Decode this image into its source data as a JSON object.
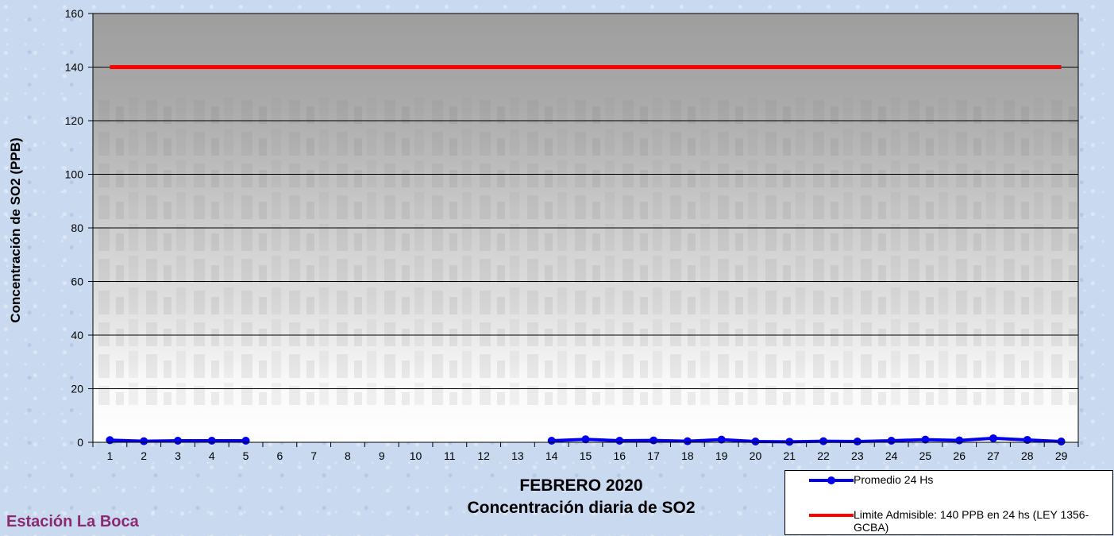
{
  "chart_data": {
    "type": "line",
    "title": "FEBRERO 2020",
    "subtitle": "Concentración diaria de SO2",
    "xlabel": "",
    "ylabel": "Concentración de SO2 (PPB)",
    "ylim": [
      0,
      160
    ],
    "yticks": [
      "0",
      "20",
      "40",
      "60",
      "80",
      "100",
      "120",
      "140",
      "160"
    ],
    "categories": [
      "1",
      "2",
      "3",
      "4",
      "5",
      "6",
      "7",
      "8",
      "9",
      "10",
      "11",
      "12",
      "13",
      "14",
      "15",
      "16",
      "17",
      "18",
      "19",
      "20",
      "21",
      "22",
      "23",
      "24",
      "25",
      "26",
      "27",
      "28",
      "29"
    ],
    "series": [
      {
        "name": "Promedio 24 Hs",
        "color": "#0000ee",
        "values": [
          0.8,
          0.4,
          0.6,
          0.6,
          0.6,
          null,
          null,
          null,
          null,
          null,
          null,
          null,
          null,
          0.6,
          1.1,
          0.6,
          0.7,
          0.4,
          1.0,
          0.3,
          0.2,
          0.4,
          0.3,
          0.6,
          1.0,
          0.7,
          1.5,
          0.9,
          0.3
        ]
      },
      {
        "name": "Limite Admisible: 140 PPB en 24 hs (LEY 1356-GCBA)",
        "color": "#ff0000",
        "values": [
          140,
          140,
          140,
          140,
          140,
          140,
          140,
          140,
          140,
          140,
          140,
          140,
          140,
          140,
          140,
          140,
          140,
          140,
          140,
          140,
          140,
          140,
          140,
          140,
          140,
          140,
          140,
          140,
          140
        ]
      }
    ],
    "grid": true,
    "legend_position": "bottom-right"
  },
  "station": "Estación La Boca"
}
